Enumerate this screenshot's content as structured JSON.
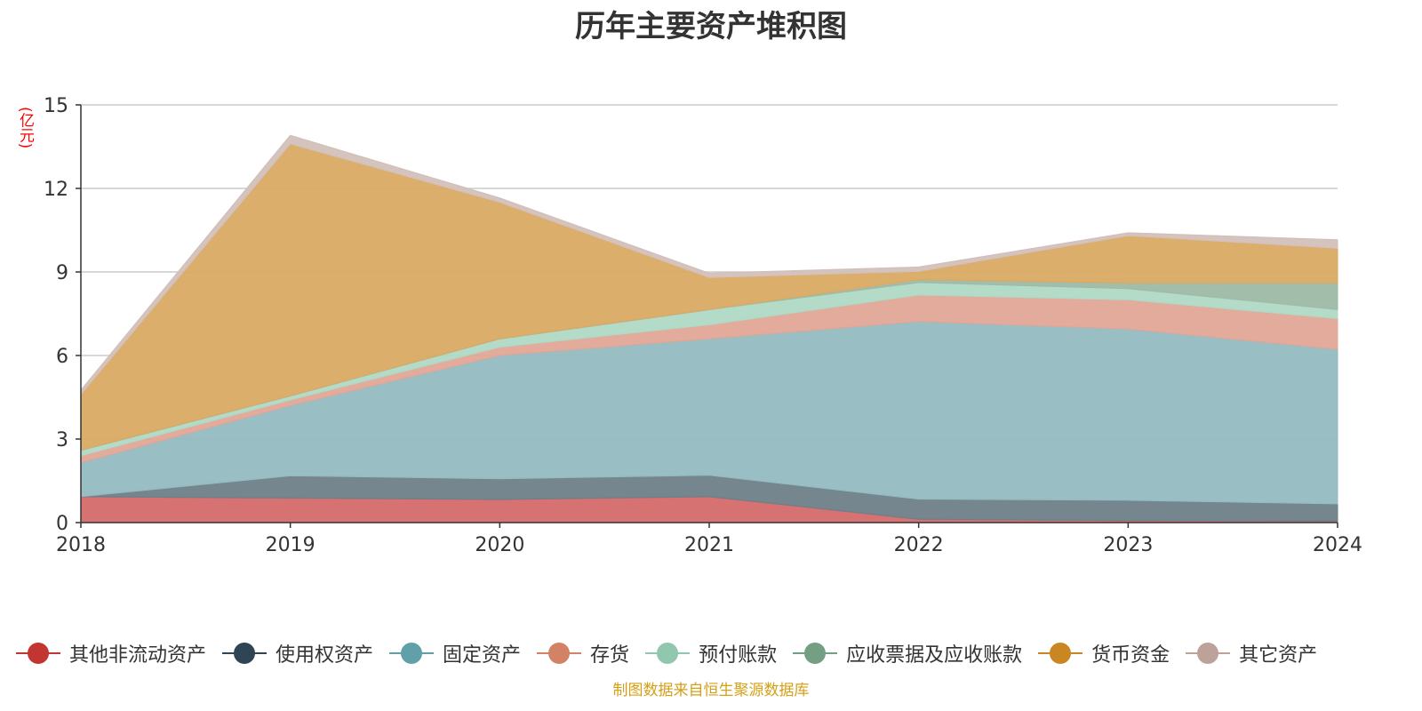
{
  "chart_data": {
    "type": "area",
    "stacked": true,
    "title": "历年主要资产堆积图",
    "unit_label": "(亿元)",
    "x": [
      "2018",
      "2019",
      "2020",
      "2021",
      "2022",
      "2023",
      "2024"
    ],
    "ylim": [
      0,
      15
    ],
    "yticks": [
      "0",
      "3",
      "6",
      "9",
      "12",
      "15"
    ],
    "grid": true,
    "legend_position": "bottom",
    "series": [
      {
        "name": "其他非流动资产",
        "color": "#c23531",
        "fill": "#d46a6a",
        "values": [
          0.93,
          0.88,
          0.83,
          0.93,
          0.12,
          0.07,
          0.05
        ]
      },
      {
        "name": "使用权资产",
        "color": "#2f4554",
        "fill": "#6e7f88",
        "values": [
          0.0,
          0.8,
          0.74,
          0.77,
          0.72,
          0.73,
          0.62
        ]
      },
      {
        "name": "固定资产",
        "color": "#61a0a8",
        "fill": "#93bbc1",
        "values": [
          1.22,
          2.52,
          4.43,
          4.9,
          6.38,
          6.15,
          5.55
        ]
      },
      {
        "name": "存货",
        "color": "#d48265",
        "fill": "#e0a797",
        "values": [
          0.25,
          0.2,
          0.3,
          0.5,
          0.95,
          1.05,
          1.1
        ]
      },
      {
        "name": "预付账款",
        "color": "#91c7ae",
        "fill": "#b0d8c5",
        "values": [
          0.2,
          0.15,
          0.3,
          0.55,
          0.45,
          0.4,
          0.33
        ]
      },
      {
        "name": "应收票据及应收账款",
        "color": "#749f83",
        "fill": "#9dbba7",
        "values": [
          0.0,
          0.0,
          0.0,
          0.0,
          0.1,
          0.2,
          0.95
        ]
      },
      {
        "name": "货币资金",
        "color": "#ca8622",
        "fill": "#d9aa64",
        "values": [
          2.0,
          9.05,
          4.9,
          1.15,
          0.3,
          1.7,
          1.25
        ]
      },
      {
        "name": "其它资产",
        "color": "#bda29a",
        "fill": "#d3c0ba",
        "values": [
          0.15,
          0.3,
          0.15,
          0.15,
          0.15,
          0.1,
          0.3
        ]
      }
    ]
  },
  "source_note": "制图数据来自恒生聚源数据库"
}
